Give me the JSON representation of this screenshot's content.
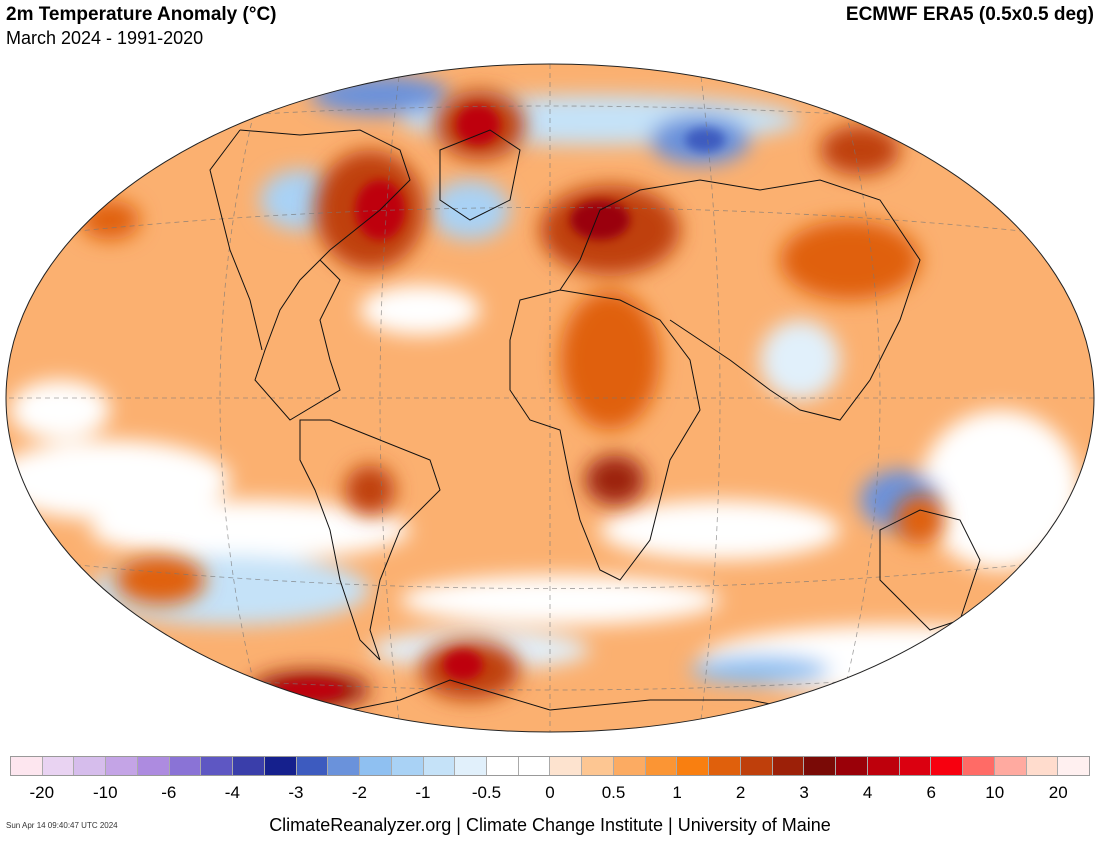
{
  "header": {
    "title": "2m Temperature Anomaly (°C)",
    "subtitle": "March 2024 - 1991-2020",
    "source": "ECMWF ERA5 (0.5x0.5 deg)"
  },
  "colorbar": {
    "colors": [
      "#fde6ef",
      "#e9d3f2",
      "#d6bdec",
      "#c4a4e6",
      "#ad8be0",
      "#8a73d6",
      "#5e57c3",
      "#3a3eaa",
      "#15208d",
      "#3d5bbf",
      "#6a92db",
      "#8fc0f1",
      "#a9d2f5",
      "#c5e2f8",
      "#e1f0fb",
      "#ffffff",
      "#ffffff",
      "#fde3cf",
      "#fdc692",
      "#fcab62",
      "#fb9534",
      "#f97f10",
      "#e0600c",
      "#bf3f0b",
      "#9c2008",
      "#7a0a06",
      "#9a0008",
      "#be000c",
      "#db0010",
      "#f7000f",
      "#ff6b66",
      "#ffaaa0",
      "#ffdccd",
      "#fff0f0"
    ],
    "ticks": [
      "-20",
      "-10",
      "-6",
      "-4",
      "-3",
      "-2",
      "-1",
      "-0.5",
      "0",
      "0.5",
      "1",
      "2",
      "3",
      "4",
      "6",
      "10",
      "20"
    ]
  },
  "footer": {
    "credit": "ClimateReanalyzer.org | Climate Change Institute | University of Maine",
    "timestamp": "Sun Apr 14 09:40:47 UTC 2024"
  }
}
